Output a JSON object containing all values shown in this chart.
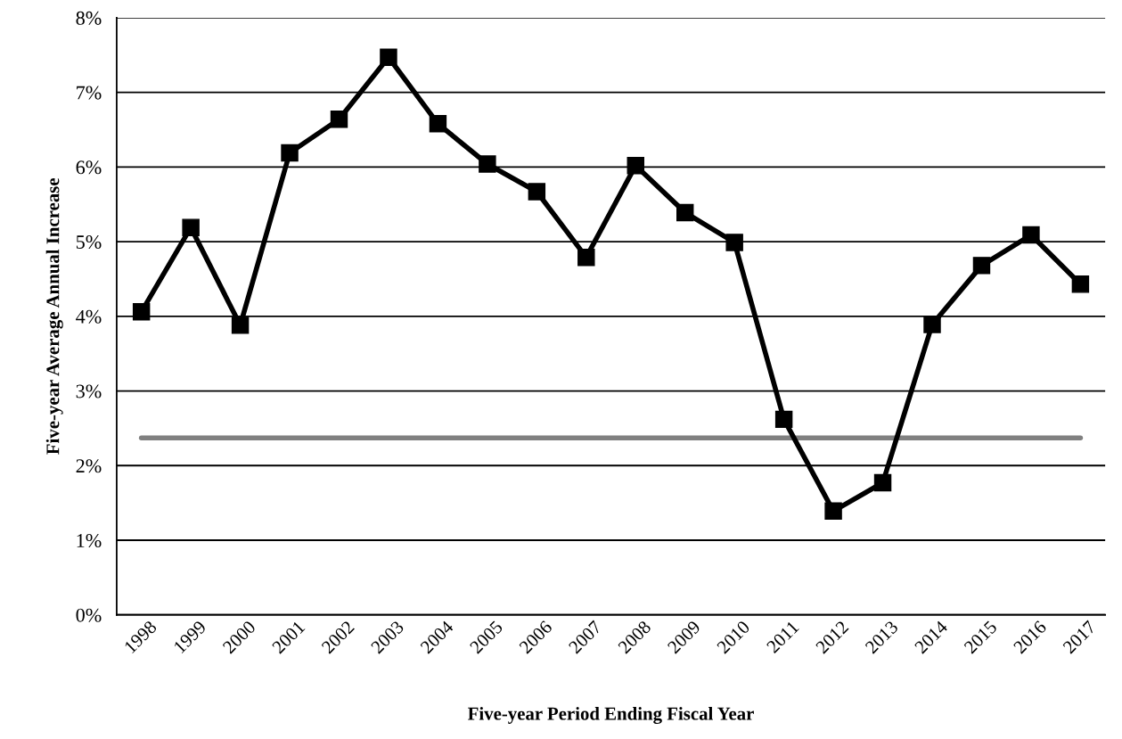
{
  "chart_data": {
    "type": "line",
    "xlabel": "Five-year Period Ending Fiscal Year",
    "ylabel": "Five-year Average Annual Increase",
    "categories": [
      "1998",
      "1999",
      "2000",
      "2001",
      "2002",
      "2003",
      "2004",
      "2005",
      "2006",
      "2007",
      "2008",
      "2009",
      "2010",
      "2011",
      "2012",
      "2013",
      "2014",
      "2015",
      "2016",
      "2017"
    ],
    "series": [
      {
        "color": "#000000",
        "marker": "square",
        "values": [
          4.06,
          5.19,
          3.88,
          6.19,
          6.64,
          7.47,
          6.58,
          6.04,
          5.67,
          4.79,
          6.02,
          5.39,
          4.99,
          2.62,
          1.39,
          1.77,
          3.89,
          4.68,
          5.09,
          4.43
        ]
      },
      {
        "color": "#808080",
        "marker": "none",
        "values": [
          2.37,
          2.37,
          2.37,
          2.37,
          2.37,
          2.37,
          2.37,
          2.37,
          2.37,
          2.37,
          2.37,
          2.37,
          2.37,
          2.37,
          2.37,
          2.37,
          2.37,
          2.37,
          2.37,
          2.37
        ]
      }
    ],
    "ylim": [
      0,
      8
    ],
    "yticks": [
      {
        "value": 0,
        "label": "0%"
      },
      {
        "value": 1,
        "label": "1%"
      },
      {
        "value": 2,
        "label": "2%"
      },
      {
        "value": 3,
        "label": "3%"
      },
      {
        "value": 4,
        "label": "4%"
      },
      {
        "value": 5,
        "label": "5%"
      },
      {
        "value": 6,
        "label": "6%"
      },
      {
        "value": 7,
        "label": "7%"
      },
      {
        "value": 8,
        "label": "8%"
      }
    ],
    "grid": "y"
  }
}
